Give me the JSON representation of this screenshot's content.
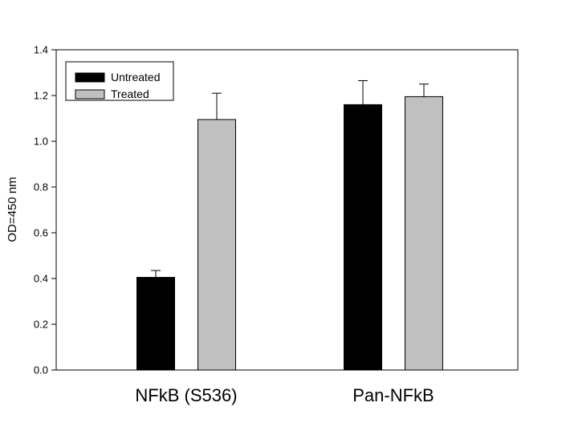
{
  "chart_data": {
    "type": "bar",
    "title": "",
    "xlabel": "",
    "ylabel": "OD=450 nm",
    "ylim": [
      0,
      1.4
    ],
    "yticks": [
      "0.0",
      "0.2",
      "0.4",
      "0.6",
      "0.8",
      "1.0",
      "1.2",
      "1.4"
    ],
    "categories": [
      "NFkB (S536)",
      "Pan-NFkB"
    ],
    "series": [
      {
        "name": "Untreated",
        "color": "#000000",
        "values": [
          0.405,
          1.16
        ],
        "errors": [
          0.03,
          0.105
        ]
      },
      {
        "name": "Treated",
        "color": "#c0c0c0",
        "values": [
          1.095,
          1.195
        ],
        "errors": [
          0.115,
          0.055
        ]
      }
    ],
    "legend": {
      "position": "top-left"
    },
    "grid": false
  }
}
